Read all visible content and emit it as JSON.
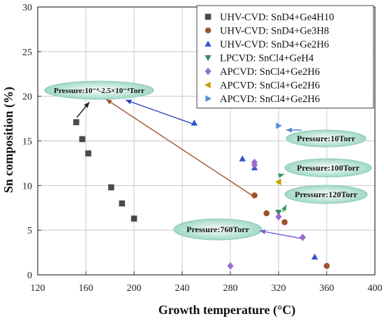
{
  "chart_data": {
    "type": "scatter",
    "title": "",
    "xlabel": "Growth temperature (°C)",
    "ylabel": "Sn composition (%)",
    "xlim": [
      120,
      400
    ],
    "ylim": [
      0,
      30
    ],
    "xticks": [
      120,
      160,
      200,
      240,
      280,
      320,
      360,
      400
    ],
    "yticks": [
      0,
      5,
      10,
      15,
      20,
      25,
      30
    ],
    "grid": true,
    "legend_position": "top-right",
    "series": [
      {
        "name": "UHV-CVD: SnD4+Ge4H10",
        "color": "#4a4a4a",
        "marker": "square",
        "x": [
          152,
          157,
          162,
          181,
          190,
          200
        ],
        "y": [
          17.1,
          15.2,
          13.6,
          9.8,
          8.0,
          6.3
        ]
      },
      {
        "name": "UHV-CVD: SnD4+Ge3H8",
        "color": "#a0522d",
        "marker": "circle",
        "x": [
          300,
          310,
          325,
          360
        ],
        "y": [
          8.9,
          6.9,
          5.9,
          1.0
        ]
      },
      {
        "name": "UHV-CVD: SnD4+Ge2H6",
        "color": "#3355cc",
        "marker": "triangle-up",
        "x": [
          250,
          290,
          300,
          350
        ],
        "y": [
          17.0,
          13.0,
          12.0,
          2.0
        ]
      },
      {
        "name": "LPCVD: SnCl4+GeH4",
        "color": "#3a8a6a",
        "marker": "triangle-down",
        "x": [
          320
        ],
        "y": [
          7.0
        ]
      },
      {
        "name": "APCVD: SnCl4+Ge2H6",
        "color": "#9a6bd0",
        "marker": "diamond",
        "x": [
          280,
          300,
          300,
          320,
          340
        ],
        "y": [
          1.0,
          12.6,
          12.3,
          6.5,
          4.2
        ]
      },
      {
        "name": "APCVD: SnCl4+Ge2H6",
        "color": "#c8a000",
        "marker": "triangle-left",
        "x": [
          320
        ],
        "y": [
          10.4
        ]
      },
      {
        "name": "APCVD: SnCl4+Ge2H6",
        "color": "#5a8ed6",
        "marker": "triangle-right",
        "x": [
          320
        ],
        "y": [
          16.7
        ]
      }
    ],
    "annotations": [
      {
        "text": "Pressure:10⁻⁴-2.5×10⁻⁴Torr"
      },
      {
        "text": "Pressure:10Torr"
      },
      {
        "text": "Pressure:100Torr"
      },
      {
        "text": "Pressure:120Torr"
      },
      {
        "text": "Pressure:760Torr"
      }
    ]
  }
}
